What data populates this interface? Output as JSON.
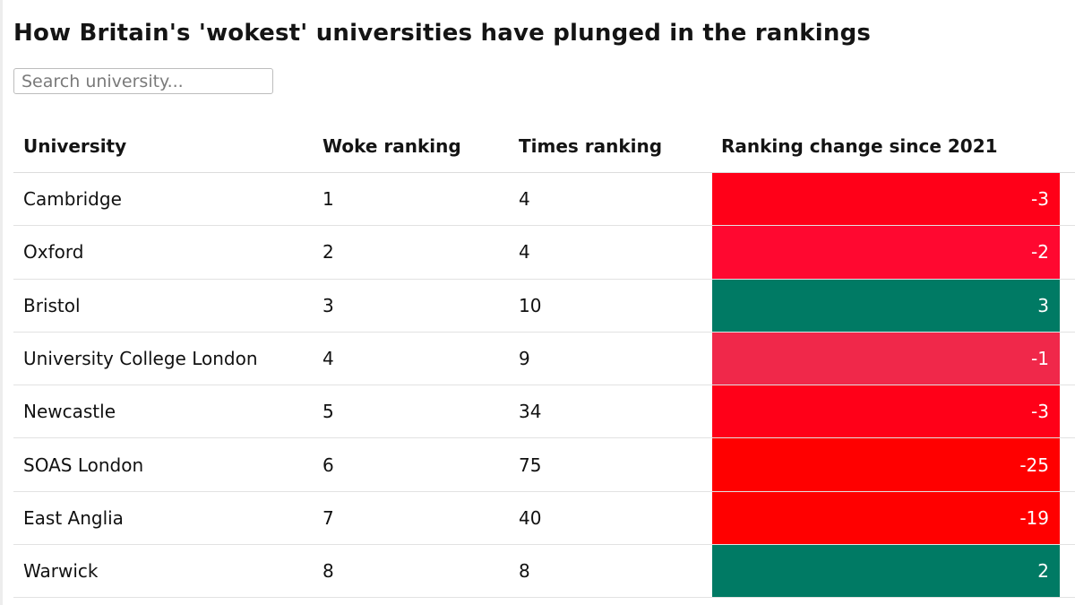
{
  "title": "How Britain's 'wokest' universities have plunged in the rankings",
  "search": {
    "placeholder": "Search university..."
  },
  "columns": {
    "university": "University",
    "woke": "Woke ranking",
    "times": "Times ranking",
    "change": "Ranking change since 2021"
  },
  "colors": {
    "negative_strong": "#ff0010",
    "negative_medium": "#ff0a2a",
    "negative_light": "#f0284a",
    "positive": "#007a64"
  },
  "rows": [
    {
      "university": "Cambridge",
      "woke": "1",
      "times": "4",
      "change": "-3",
      "color": "#ff0018"
    },
    {
      "university": "Oxford",
      "woke": "2",
      "times": "4",
      "change": "-2",
      "color": "#ff0830"
    },
    {
      "university": "Bristol",
      "woke": "3",
      "times": "10",
      "change": "3",
      "color": "#007a64"
    },
    {
      "university": "University College London",
      "woke": "4",
      "times": "9",
      "change": "-1",
      "color": "#f0284a"
    },
    {
      "university": "Newcastle",
      "woke": "5",
      "times": "34",
      "change": "-3",
      "color": "#ff0018"
    },
    {
      "university": "SOAS London",
      "woke": "6",
      "times": "75",
      "change": "-25",
      "color": "#ff0000"
    },
    {
      "university": "East Anglia",
      "woke": "7",
      "times": "40",
      "change": "-19",
      "color": "#ff0000"
    },
    {
      "university": "Warwick",
      "woke": "8",
      "times": "8",
      "change": "2",
      "color": "#007a64"
    }
  ]
}
